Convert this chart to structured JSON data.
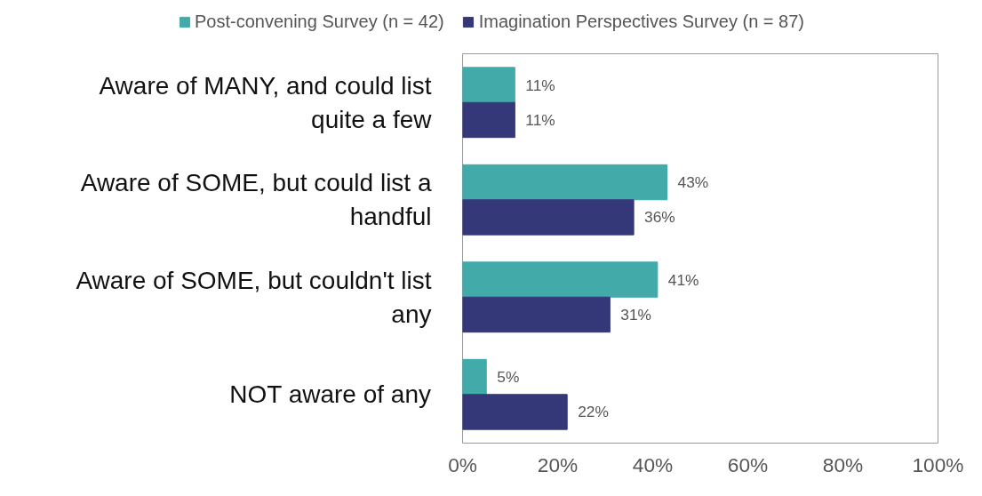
{
  "chart_data": {
    "type": "bar",
    "orientation": "horizontal",
    "categories": [
      "Aware of MANY, and could list quite a few",
      "Aware of SOME, but could list a handful",
      "Aware of SOME, but couldn't list any",
      "NOT aware of any"
    ],
    "series": [
      {
        "name": "Post-convening Survey (n = 42)",
        "color": "#42abaa",
        "values": [
          11,
          43,
          41,
          5
        ],
        "value_labels": [
          "11%",
          "43%",
          "41%",
          "5%"
        ]
      },
      {
        "name": "Imagination Perspectives Survey (n = 87)",
        "color": "#343878",
        "values": [
          11,
          36,
          31,
          22
        ],
        "value_labels": [
          "11%",
          "36%",
          "31%",
          "22%"
        ]
      }
    ],
    "xlim": [
      0,
      100
    ],
    "xticks": [
      {
        "value": 0,
        "label": "0%"
      },
      {
        "value": 20,
        "label": "20%"
      },
      {
        "value": 40,
        "label": "40%"
      },
      {
        "value": 60,
        "label": "60%"
      },
      {
        "value": 80,
        "label": "80%"
      },
      {
        "value": 100,
        "label": "100%"
      }
    ],
    "legend": "top",
    "grid": false
  }
}
